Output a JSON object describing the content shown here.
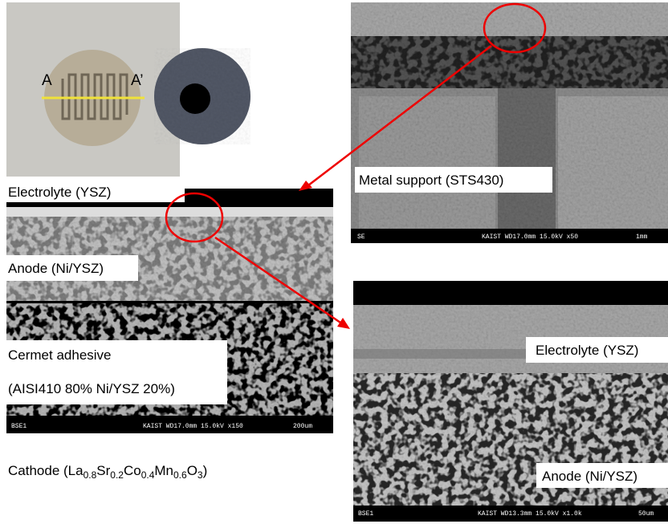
{
  "photo": {
    "label_left": "A",
    "label_right": "A’"
  },
  "sem_top": {
    "label": "Metal support (STS430)",
    "detector": "SE",
    "info": "KAIST  WD17.0mm 15.0kV x50",
    "scale": "1mm"
  },
  "sem_left": {
    "labels": [
      "Electrolyte (YSZ)",
      "Anode (Ni/YSZ)",
      "Cermet adhesive",
      "(AISI410 80% Ni/YSZ 20%)"
    ],
    "detector": "BSE1",
    "info": "KAIST  WD17.0mm 15.0kV x150",
    "scale": "200um"
  },
  "sem_right": {
    "labels": [
      "Electrolyte (YSZ)",
      "Anode (Ni/YSZ)"
    ],
    "detector": "BSE1",
    "info": "KAIST  WD13.3mm 15.0kV x1.0k",
    "scale": "50um"
  },
  "cathode": [
    "Cathode (La",
    "0.8",
    "Sr",
    "0.2",
    "Co",
    "0.4",
    "Mn",
    "0.6",
    "O",
    "3",
    ")"
  ]
}
